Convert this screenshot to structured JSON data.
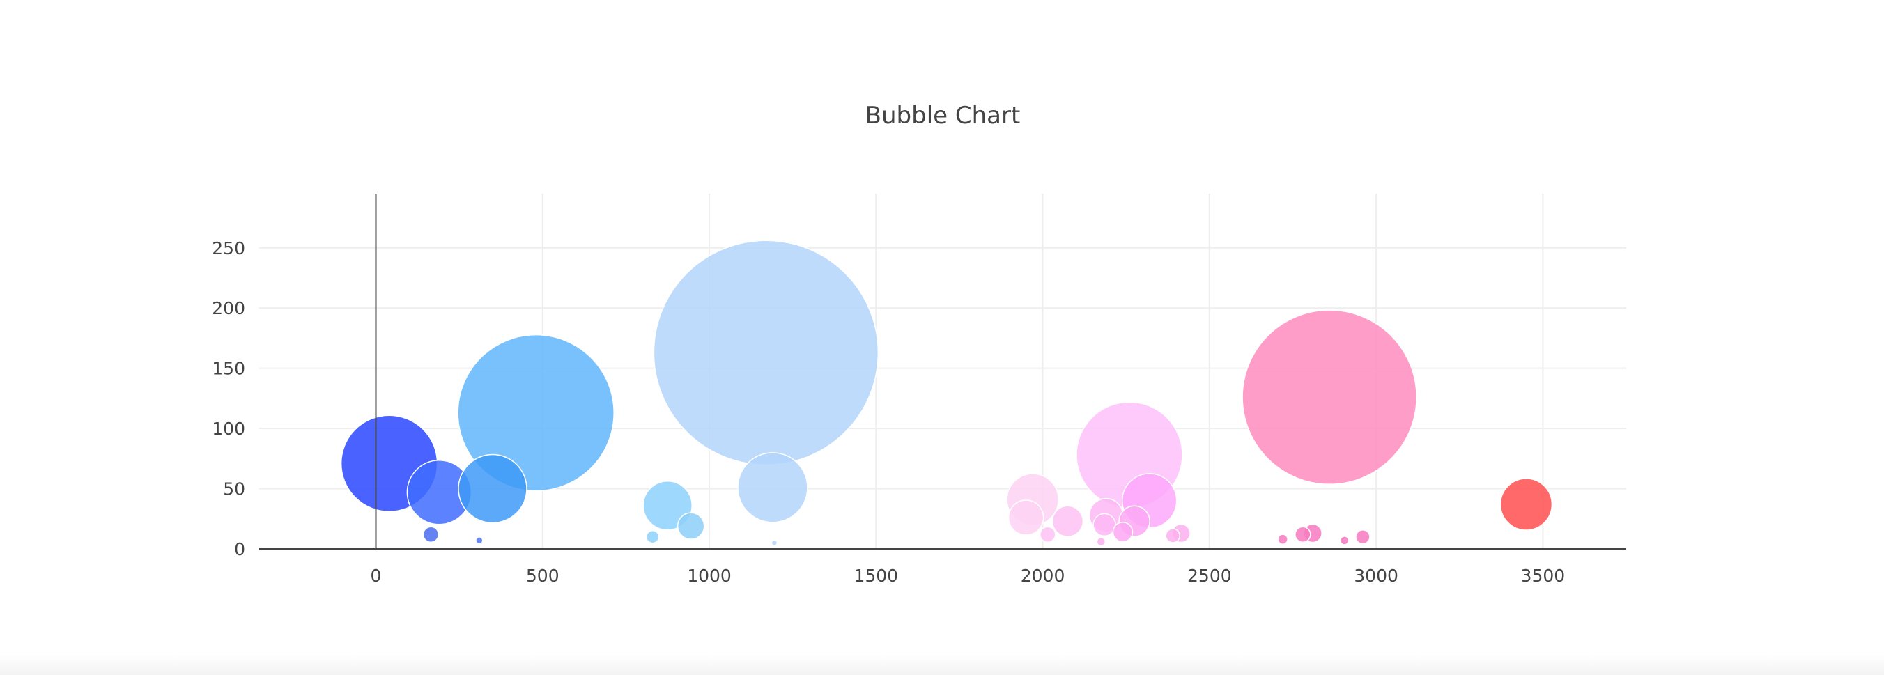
{
  "chart_data": {
    "type": "scatter",
    "title": "Bubble Chart",
    "xlabel": "",
    "ylabel": "",
    "xlim": [
      -350,
      3750
    ],
    "ylim": [
      0,
      295
    ],
    "xticks": [
      0,
      500,
      1000,
      1500,
      2000,
      2500,
      3000,
      3500
    ],
    "yticks": [
      0,
      50,
      100,
      150,
      200,
      250
    ],
    "grid": true,
    "legend": "none",
    "points": [
      {
        "x": 40,
        "y": 71,
        "size": 138,
        "color": "#2a46ff"
      },
      {
        "x": 190,
        "y": 47,
        "size": 92,
        "color": "#3f6cff"
      },
      {
        "x": 165,
        "y": 12,
        "size": 22,
        "color": "#4a6cf0"
      },
      {
        "x": 310,
        "y": 7,
        "size": 10,
        "color": "#5577f0"
      },
      {
        "x": 480,
        "y": 113,
        "size": 224,
        "color": "#62b6fb"
      },
      {
        "x": 350,
        "y": 50,
        "size": 98,
        "color": "#3e9af7"
      },
      {
        "x": 875,
        "y": 36,
        "size": 70,
        "color": "#8dd1fb"
      },
      {
        "x": 945,
        "y": 19,
        "size": 38,
        "color": "#8dcff8"
      },
      {
        "x": 830,
        "y": 10,
        "size": 18,
        "color": "#8dd1fb"
      },
      {
        "x": 1170,
        "y": 163,
        "size": 322,
        "color": "#b3d5fb"
      },
      {
        "x": 1190,
        "y": 51,
        "size": 100,
        "color": "#b3d5fb"
      },
      {
        "x": 1195,
        "y": 5,
        "size": 8,
        "color": "#b3d5fb"
      },
      {
        "x": 1970,
        "y": 41,
        "size": 74,
        "color": "#fed2f5"
      },
      {
        "x": 1950,
        "y": 26,
        "size": 50,
        "color": "#fed2f5"
      },
      {
        "x": 2075,
        "y": 23,
        "size": 44,
        "color": "#fec1f5"
      },
      {
        "x": 2015,
        "y": 12,
        "size": 22,
        "color": "#fec1f5"
      },
      {
        "x": 2260,
        "y": 78,
        "size": 152,
        "color": "#fec1fb"
      },
      {
        "x": 2320,
        "y": 40,
        "size": 78,
        "color": "#fda8fb"
      },
      {
        "x": 2190,
        "y": 28,
        "size": 48,
        "color": "#fdb8f5"
      },
      {
        "x": 2275,
        "y": 23,
        "size": 44,
        "color": "#fda8f5"
      },
      {
        "x": 2185,
        "y": 20,
        "size": 32,
        "color": "#fdb8f5"
      },
      {
        "x": 2240,
        "y": 14,
        "size": 28,
        "color": "#fda8f5"
      },
      {
        "x": 2415,
        "y": 13,
        "size": 26,
        "color": "#fdb0ee"
      },
      {
        "x": 2390,
        "y": 11,
        "size": 20,
        "color": "#fdb0ee"
      },
      {
        "x": 2175,
        "y": 6,
        "size": 12,
        "color": "#fdb0ee"
      },
      {
        "x": 2860,
        "y": 126,
        "size": 250,
        "color": "#ff8cc0"
      },
      {
        "x": 2810,
        "y": 13,
        "size": 26,
        "color": "#f77ac0"
      },
      {
        "x": 2780,
        "y": 12,
        "size": 22,
        "color": "#f77ac0"
      },
      {
        "x": 2960,
        "y": 10,
        "size": 20,
        "color": "#f77ac0"
      },
      {
        "x": 2720,
        "y": 8,
        "size": 14,
        "color": "#f77ac0"
      },
      {
        "x": 2905,
        "y": 7,
        "size": 12,
        "color": "#f77ac0"
      },
      {
        "x": 3450,
        "y": 37,
        "size": 74,
        "color": "#ff4f4f"
      }
    ]
  }
}
